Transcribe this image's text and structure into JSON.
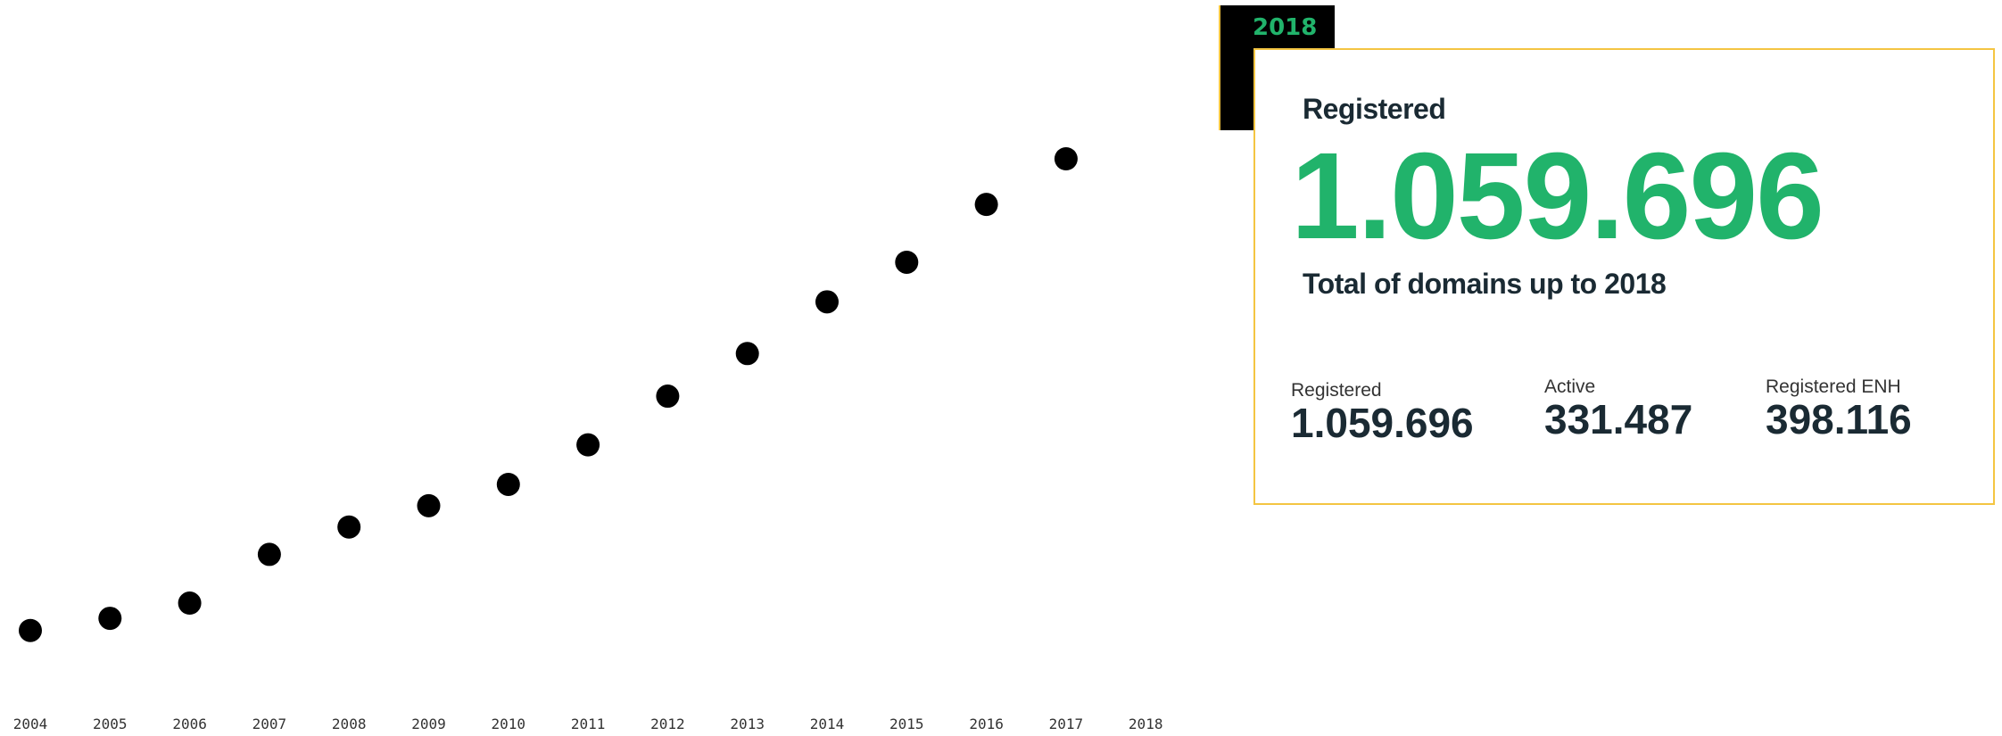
{
  "chart_data": {
    "type": "scatter",
    "x": [
      "2004",
      "2005",
      "2006",
      "2007",
      "2008",
      "2009",
      "2010",
      "2011",
      "2012",
      "2013",
      "2014",
      "2015",
      "2016",
      "2017",
      "2018"
    ],
    "y": [
      40,
      60,
      85,
      165,
      210,
      245,
      280,
      345,
      425,
      495,
      580,
      645,
      740,
      815,
      null
    ],
    "xlabel": "",
    "ylabel": "",
    "grid": false,
    "marker_color": "#000000"
  },
  "card": {
    "year_tab": "2018",
    "heading": "Registered",
    "big_value": "1.059.696",
    "subtitle": "Total of domains up to 2018",
    "stats": [
      {
        "label": "Registered",
        "value": "1.059.696"
      },
      {
        "label": "Active",
        "value": "331.487"
      },
      {
        "label": "Registered ENH",
        "value": "398.116"
      }
    ],
    "accent_color": "#21b36b",
    "border_color": "#f4c542"
  }
}
